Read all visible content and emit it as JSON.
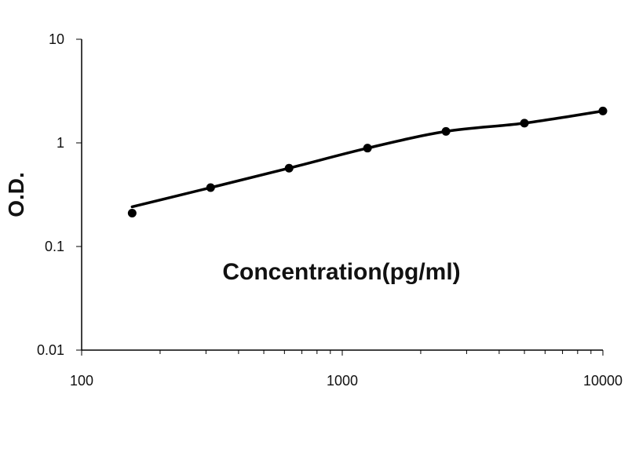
{
  "chart_data": {
    "type": "scatter",
    "title": "",
    "xlabel": "Concentration(pg/ml)",
    "ylabel": "O.D.",
    "xscale": "log",
    "yscale": "log",
    "xlim": [
      100,
      10000
    ],
    "ylim": [
      0.01,
      10
    ],
    "grid": false,
    "legend": "none",
    "x_tick_labels": [
      "100",
      "1000",
      "10000"
    ],
    "y_tick_labels": [
      "0.01",
      "0.1",
      "1",
      "10"
    ],
    "series": [
      {
        "x": [
          156.25,
          312.5,
          625,
          1250,
          2500,
          5000,
          10000
        ],
        "y": [
          0.21,
          0.37,
          0.57,
          0.89,
          1.29,
          1.55,
          2.03
        ]
      }
    ],
    "trend_line": "smooth",
    "colors": {
      "markers": "#000000",
      "line": "#000000",
      "axis": "#000000"
    }
  }
}
